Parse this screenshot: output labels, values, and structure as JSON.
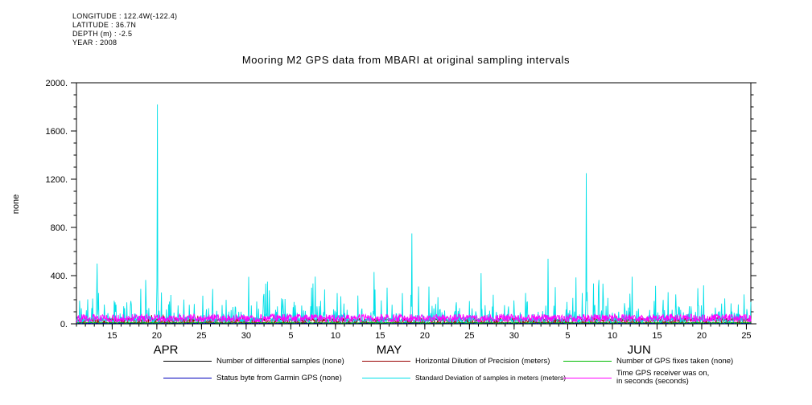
{
  "header": {
    "lines": [
      "LONGITUDE : 122.4W(-122.4)",
      "LATITUDE : 36.7N",
      "DEPTH (m) : -2.5",
      "YEAR : 2008"
    ]
  },
  "chart_data": {
    "type": "line",
    "title": "Mooring M2 GPS data from MBARI at original sampling intervals",
    "ylabel": "none",
    "ylim": [
      0,
      2000
    ],
    "grid": false,
    "legend_position": "bottom",
    "yticks": {
      "major_step": 400,
      "minor_step": 100,
      "label_suffix": ".",
      "major_labels": [
        "0.",
        "400.",
        "800.",
        "1200.",
        "1600.",
        "2000."
      ]
    },
    "x_axis": {
      "start_date": "2008-04-11",
      "total_days": 75.5,
      "major_ticks": [
        {
          "day": 4,
          "label": "15"
        },
        {
          "day": 9,
          "label": "20"
        },
        {
          "day": 14,
          "label": "25"
        },
        {
          "day": 19,
          "label": "30"
        },
        {
          "day": 24,
          "label": "5"
        },
        {
          "day": 29,
          "label": "10"
        },
        {
          "day": 34,
          "label": "15"
        },
        {
          "day": 39,
          "label": "20"
        },
        {
          "day": 44,
          "label": "25"
        },
        {
          "day": 49,
          "label": "30"
        },
        {
          "day": 55,
          "label": "5"
        },
        {
          "day": 60,
          "label": "10"
        },
        {
          "day": 65,
          "label": "15"
        },
        {
          "day": 70,
          "label": "20"
        },
        {
          "day": 75,
          "label": "25"
        }
      ],
      "month_labels": [
        {
          "day_center": 10,
          "label": "APR"
        },
        {
          "day_center": 35,
          "label": "MAY"
        },
        {
          "day_center": 63,
          "label": "JUN"
        }
      ]
    },
    "series": [
      {
        "name": "Number of differential samples (none)",
        "color": "#000000",
        "approx_range": [
          0,
          12
        ],
        "render": {
          "seed": 11,
          "base": 3,
          "jitter": 9,
          "width": 0.8
        }
      },
      {
        "name": "Status byte from Garmin GPS (none)",
        "color": "#0000BB",
        "approx_range": [
          0,
          8
        ],
        "render": {
          "seed": 22,
          "base": 1.5,
          "jitter": 6,
          "width": 0.8
        }
      },
      {
        "name": "Number of GPS fixes taken (none)",
        "color": "#00BB00",
        "approx_range": [
          2,
          16
        ],
        "render": {
          "seed": 33,
          "base": 4,
          "jitter": 10,
          "width": 0.8
        }
      },
      {
        "name": "Horizontal Dilution of Precision (meters)",
        "color": "#990000",
        "approx_range": [
          8,
          48
        ],
        "render": {
          "seed": 44,
          "base": 8,
          "jitter": 40,
          "exp_prob": 0.1,
          "exp_scale": 12,
          "width": 0.8
        }
      },
      {
        "name": "Standard Deviation of samples in meters (meters)",
        "color": "#00E0E8",
        "approx_range": [
          10,
          470
        ],
        "spike_day_origin": "2008-04-11",
        "spikes": [
          [
            1.8,
            210
          ],
          [
            2.3,
            500
          ],
          [
            3.1,
            160
          ],
          [
            5.4,
            130
          ],
          [
            7.2,
            290
          ],
          [
            9.05,
            1820
          ],
          [
            9.5,
            260
          ],
          [
            10.4,
            185
          ],
          [
            13.2,
            165
          ],
          [
            14.8,
            130
          ],
          [
            17.5,
            140
          ],
          [
            19.3,
            390
          ],
          [
            20.2,
            185
          ],
          [
            21.4,
            350
          ],
          [
            23.1,
            205
          ],
          [
            24.5,
            155
          ],
          [
            26.3,
            300
          ],
          [
            27.8,
            285
          ],
          [
            29.2,
            255
          ],
          [
            31.5,
            235
          ],
          [
            33.3,
            430
          ],
          [
            34.8,
            300
          ],
          [
            36.5,
            255
          ],
          [
            37.55,
            750
          ],
          [
            38.3,
            310
          ],
          [
            40.2,
            165
          ],
          [
            42.5,
            145
          ],
          [
            45.3,
            420
          ],
          [
            47.9,
            155
          ],
          [
            50.5,
            185
          ],
          [
            52.8,
            540
          ],
          [
            53.6,
            305
          ],
          [
            55.9,
            385
          ],
          [
            57.1,
            1250
          ],
          [
            57.9,
            335
          ],
          [
            59.5,
            215
          ],
          [
            61.8,
            135
          ],
          [
            64.2,
            115
          ],
          [
            67.4,
            145
          ],
          [
            69.6,
            155
          ],
          [
            71.5,
            135
          ],
          [
            73.3,
            170
          ]
        ],
        "render": {
          "seed": 55,
          "base": 12,
          "jitter": 34,
          "exp_prob": 0.3,
          "exp_scale": 65,
          "cap": 470,
          "width": 0.9
        }
      },
      {
        "name": "Time GPS receiver was on, in seconds (seconds)",
        "color": "#FF00FF",
        "approx_range": [
          15,
          80
        ],
        "render": {
          "seed": 66,
          "base": 15,
          "jitter": 65,
          "width": 0.9
        }
      }
    ]
  },
  "legend": {
    "items": [
      {
        "label": "Number of differential samples (none)",
        "color": "#000000"
      },
      {
        "label": "Horizontal Dilution of Precision (meters)",
        "color": "#990000"
      },
      {
        "label": "Number of GPS fixes taken (none)",
        "color": "#00BB00"
      },
      {
        "label": "Status byte from Garmin GPS (none)",
        "color": "#0000BB"
      },
      {
        "label": "Standard Deviation of samples in meters (meters)",
        "color": "#00E0E8"
      },
      {
        "label": "Time GPS receiver was on,",
        "label2": "in seconds (seconds)",
        "color": "#FF00FF"
      }
    ]
  }
}
